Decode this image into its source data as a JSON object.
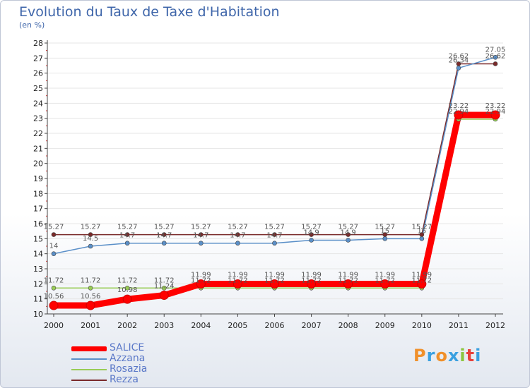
{
  "chart_data": {
    "type": "line",
    "title": "Evolution du Taux de Taxe d'Habitation",
    "subtitle": "(en %)",
    "x": [
      "2000",
      "2001",
      "2002",
      "2003",
      "2004",
      "2005",
      "2006",
      "2007",
      "2008",
      "2009",
      "2010",
      "2011",
      "2012"
    ],
    "ylim": [
      10,
      28
    ],
    "yticks": [
      "10",
      "11",
      "12",
      "13",
      "14",
      "15",
      "16",
      "17",
      "18",
      "19",
      "20",
      "21",
      "22",
      "23",
      "24",
      "25",
      "26",
      "27",
      "28"
    ],
    "series": [
      {
        "name": "Rezza",
        "color": "#7a2a2a",
        "values": [
          15.27,
          15.27,
          15.27,
          15.27,
          15.27,
          15.27,
          15.27,
          15.27,
          15.27,
          15.27,
          15.27,
          26.62,
          26.62
        ],
        "labels": [
          "15.27",
          "15.27",
          "15.27",
          "15.27",
          "15.27",
          "15.27",
          "15.27",
          "15.27",
          "15.27",
          "15.27",
          "15.27",
          "26.62",
          "26.62"
        ]
      },
      {
        "name": "Azzana",
        "color": "#5a8fc8",
        "values": [
          14,
          14.5,
          14.7,
          14.7,
          14.7,
          14.7,
          14.7,
          14.9,
          14.9,
          15,
          15,
          26.34,
          27.05
        ],
        "labels": [
          "14",
          "14.5",
          "14.7",
          "14.7",
          "14.7",
          "14.7",
          "14.7",
          "14.9",
          "14.9",
          "15",
          "15",
          "26.34",
          "27.05"
        ]
      },
      {
        "name": "Rosazia",
        "color": "#99cc55",
        "values": [
          11.72,
          11.72,
          11.72,
          11.72,
          11.72,
          11.72,
          11.72,
          11.72,
          11.72,
          11.72,
          11.72,
          22.94,
          22.94
        ],
        "labels": [
          "11.72",
          "11.72",
          "11.72",
          "11.72",
          "11.72",
          "11.72",
          "11.72",
          "11.72",
          "11.72",
          "11.72",
          "11.72",
          "22.94",
          "22.94"
        ]
      },
      {
        "name": "SALICE",
        "color": "#ff0000",
        "values": [
          10.56,
          10.56,
          10.98,
          11.24,
          11.99,
          11.99,
          11.99,
          11.99,
          11.99,
          11.99,
          11.99,
          23.22,
          23.22
        ],
        "labels": [
          "10.56",
          "10.56",
          "10.98",
          "11.24",
          "11.99",
          "11.99",
          "11.99",
          "11.99",
          "11.99",
          "11.99",
          "11.99",
          "23.22",
          "23.22"
        ]
      }
    ],
    "legend": [
      "SALICE",
      "Azzana",
      "Rosazia",
      "Rezza"
    ]
  },
  "legend_colors": {
    "SALICE": "#ff0000",
    "Azzana": "#5a8fc8",
    "Rosazia": "#99cc55",
    "Rezza": "#7a2a2a"
  },
  "brand": {
    "logo_text": "Proxiti",
    "colors": [
      "#f0902a",
      "#3aa0e0",
      "#f0902a",
      "#3aa0e0",
      "#8cc63f",
      "#e8403a",
      "#3aa0e0"
    ]
  }
}
